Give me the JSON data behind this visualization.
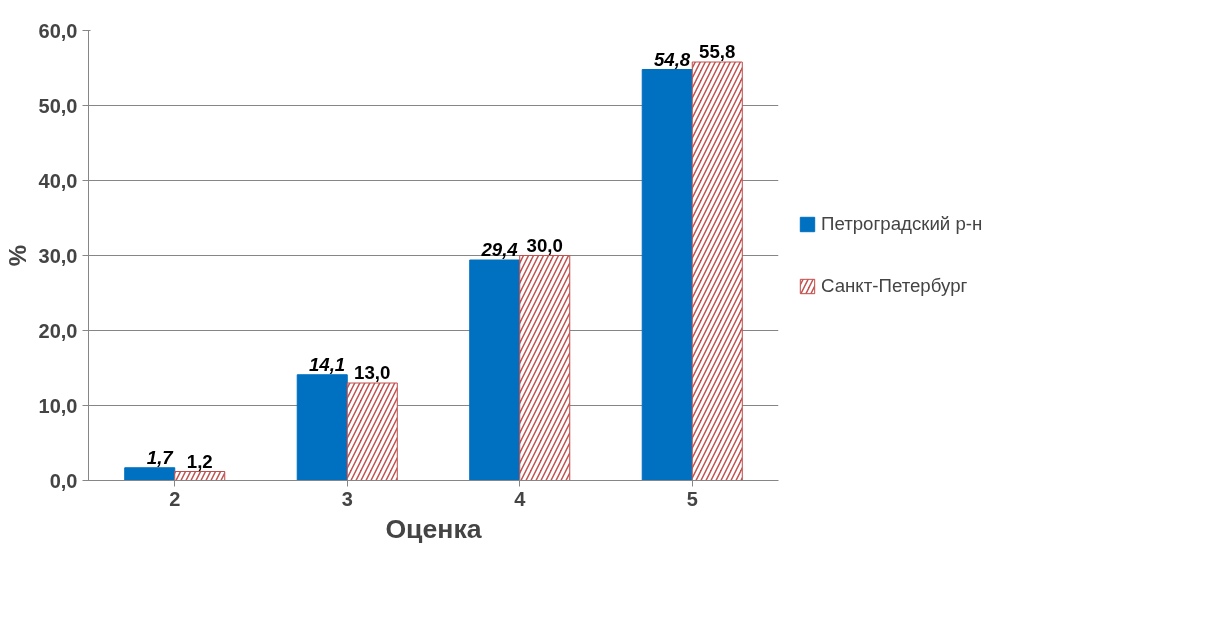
{
  "chart_data": {
    "type": "bar",
    "xlabel": "Оценка",
    "ylabel": "%",
    "categories": [
      "2",
      "3",
      "4",
      "5"
    ],
    "series": [
      {
        "name": "Петроградский р-н",
        "color": "#0070c0",
        "values": [
          1.7,
          14.1,
          29.4,
          54.8
        ],
        "value_labels": [
          "1,7",
          "14,1",
          "29,4",
          "54,8"
        ]
      },
      {
        "name": "Санкт-Петербург",
        "color": "#c0504d",
        "values": [
          1.2,
          13.0,
          30.0,
          55.8
        ],
        "value_labels": [
          "1,2",
          "13,0",
          "30,0",
          "55,8"
        ]
      }
    ],
    "ylim": [
      0,
      60
    ],
    "yticks": [
      {
        "value": 0,
        "label": "0,0"
      },
      {
        "value": 10,
        "label": "10,0"
      },
      {
        "value": 20,
        "label": "20,0"
      },
      {
        "value": 30,
        "label": "30,0"
      },
      {
        "value": 40,
        "label": "40,0"
      },
      {
        "value": 50,
        "label": "50,0"
      },
      {
        "value": 60,
        "label": "60,0"
      }
    ],
    "grid": "y",
    "legend": "right"
  }
}
